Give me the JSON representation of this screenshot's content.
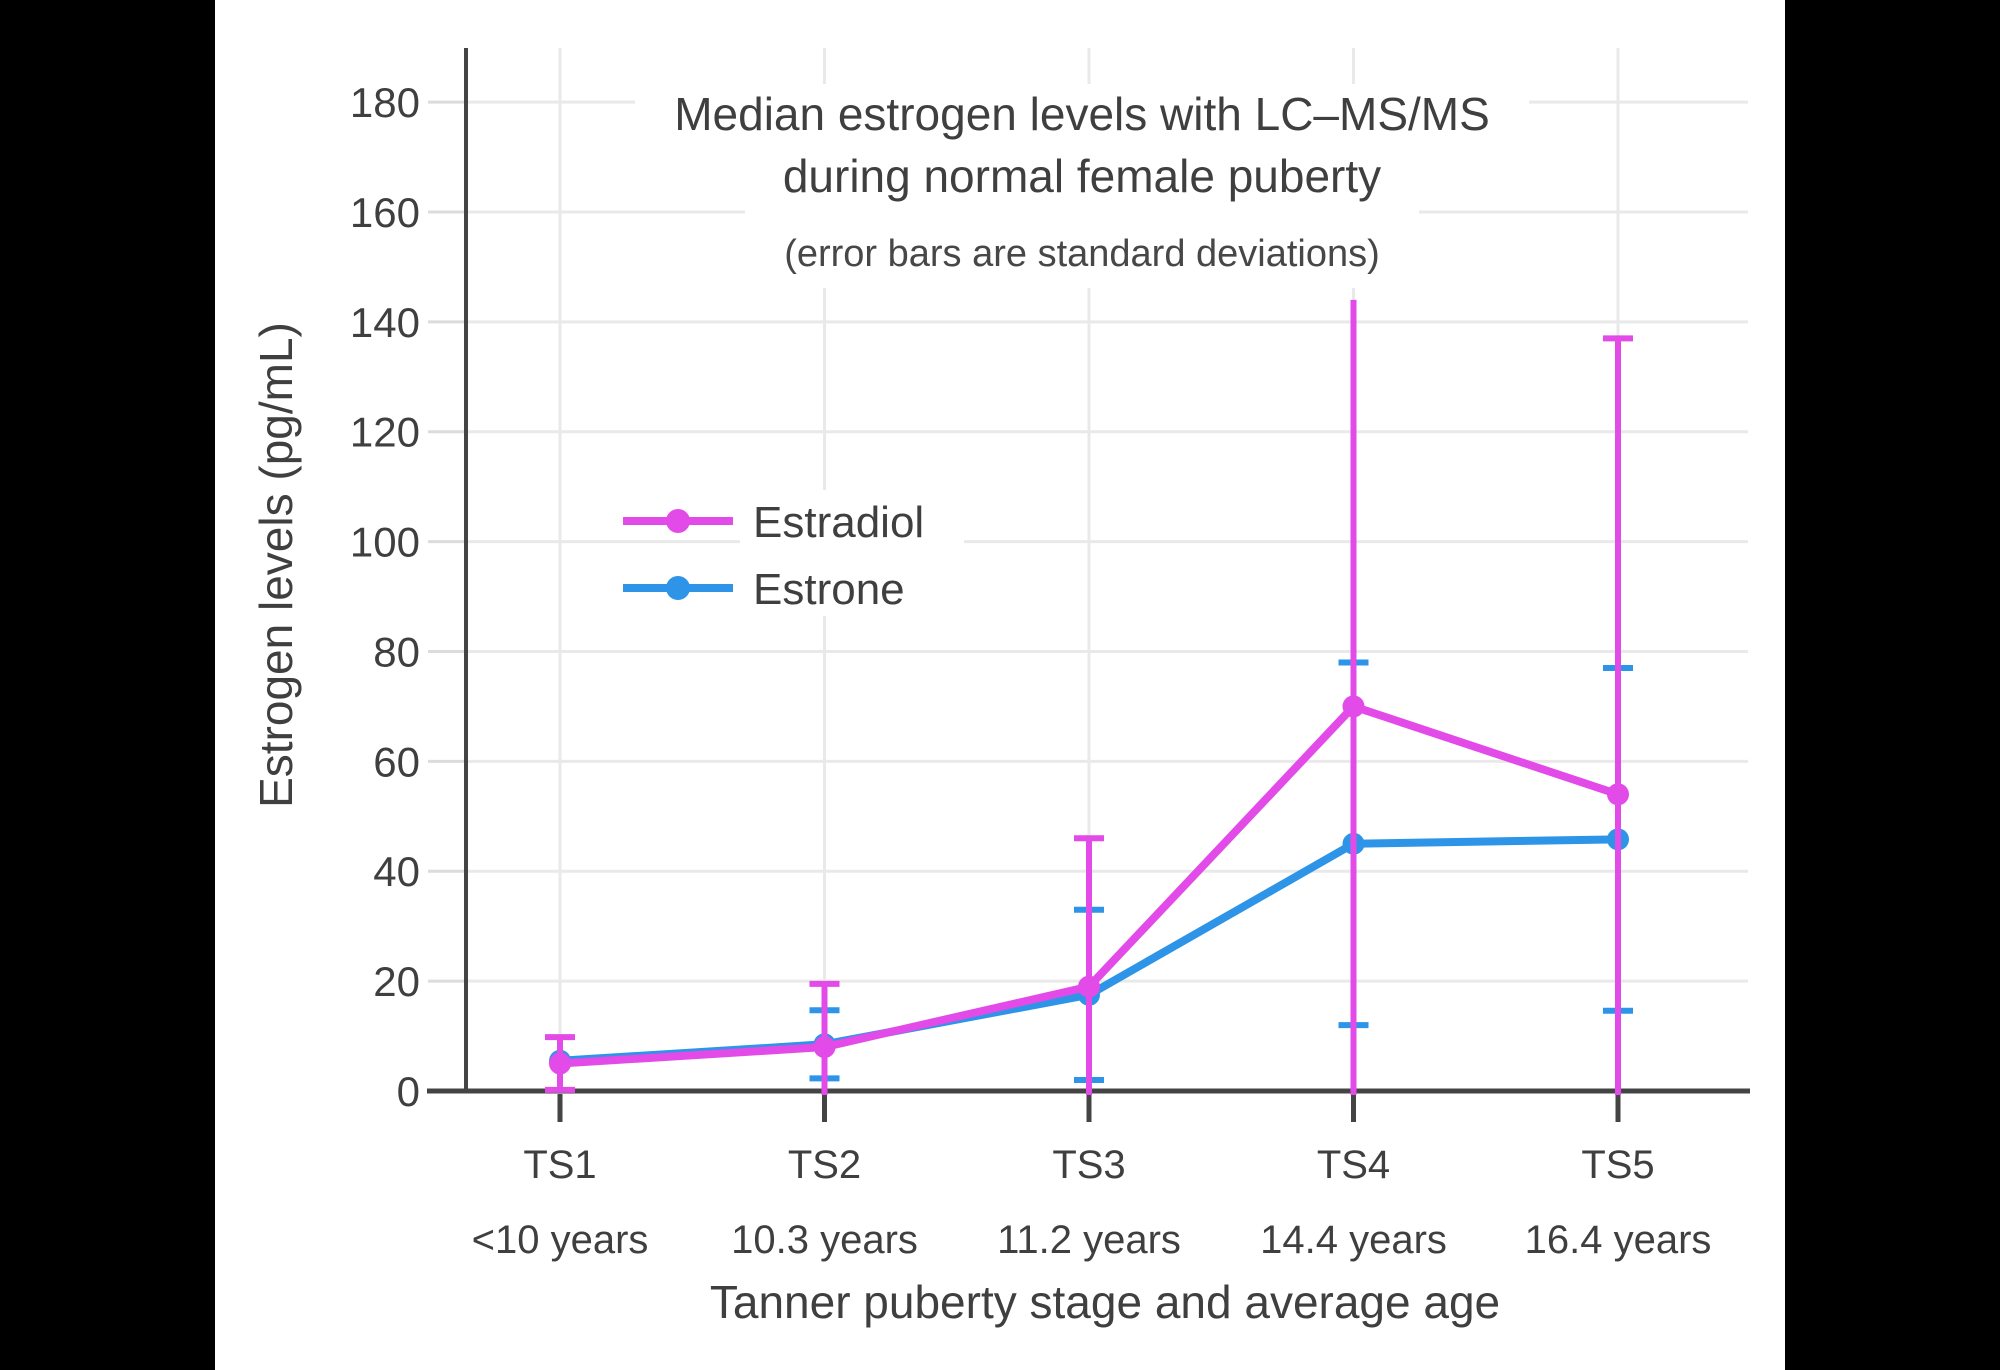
{
  "canvas": {
    "letterbox_color": "#000000",
    "panel_color": "#ffffff"
  },
  "title": {
    "line1": "Median estrogen levels with LC–MS/MS",
    "line2": "during normal female puberty",
    "subtitle": "(error bars are standard deviations)"
  },
  "axes": {
    "y": {
      "title": "Estrogen levels (pg/mL)",
      "tick_values": [
        0,
        20,
        40,
        60,
        80,
        100,
        120,
        140,
        160,
        180
      ]
    },
    "x": {
      "title": "Tanner puberty stage and average age",
      "categories": [
        {
          "stage": "TS1",
          "age": "<10 years"
        },
        {
          "stage": "TS2",
          "age": "10.3 years"
        },
        {
          "stage": "TS3",
          "age": "11.2 years"
        },
        {
          "stage": "TS4",
          "age": "14.4 years"
        },
        {
          "stage": "TS5",
          "age": "16.4 years"
        }
      ]
    }
  },
  "legend": {
    "items": [
      {
        "label": "Estradiol",
        "color": "#E24BE8"
      },
      {
        "label": "Estrone",
        "color": "#2E94E8"
      }
    ]
  },
  "styles": {
    "text_color": "#3f3f3f",
    "axis_color": "#444444",
    "gridline_color": "#e9e9e9",
    "y_tick_stub_color": "#dcdcdc"
  },
  "chart_data": {
    "type": "line",
    "title": "Median estrogen levels with LC–MS/MS during normal female puberty",
    "subtitle": "(error bars are standard deviations)",
    "xlabel": "Tanner puberty stage and average age",
    "ylabel": "Estrogen levels (pg/mL)",
    "categories": [
      "TS1 (<10 years)",
      "TS2 (10.3 years)",
      "TS3 (11.2 years)",
      "TS4 (14.4 years)",
      "TS5 (16.4 years)"
    ],
    "yticks": [
      0,
      20,
      40,
      60,
      80,
      100,
      120,
      140,
      160,
      180
    ],
    "ylim": [
      0,
      190
    ],
    "grid": true,
    "error_bars": "standard deviations, clipped at y = 0",
    "legend_position": "inside upper-left",
    "series": [
      {
        "name": "Estrone",
        "color": "#2E94E8",
        "draw_order": 1,
        "values": [
          5.5,
          8.5,
          17.5,
          45,
          45.8
        ],
        "sd": [
          null,
          6.2,
          15.5,
          33,
          31.2
        ],
        "error_top": [
          null,
          14.7,
          33,
          78,
          77
        ],
        "error_bottom": [
          null,
          2.3,
          2,
          12,
          14.6
        ],
        "cap_top": [
          false,
          true,
          true,
          true,
          true
        ],
        "cap_bottom": [
          false,
          true,
          true,
          true,
          true
        ]
      },
      {
        "name": "Estradiol",
        "color": "#E24BE8",
        "draw_order": 2,
        "values": [
          5,
          8,
          19,
          70,
          54
        ],
        "sd": [
          4.8,
          11.5,
          27,
          74,
          83
        ],
        "error_top": [
          9.8,
          19.5,
          46,
          144,
          137
        ],
        "error_bottom": [
          0.2,
          0,
          0,
          0,
          0
        ],
        "cap_top": [
          true,
          true,
          true,
          false,
          true
        ],
        "cap_bottom": [
          true,
          false,
          false,
          false,
          false
        ]
      }
    ]
  }
}
